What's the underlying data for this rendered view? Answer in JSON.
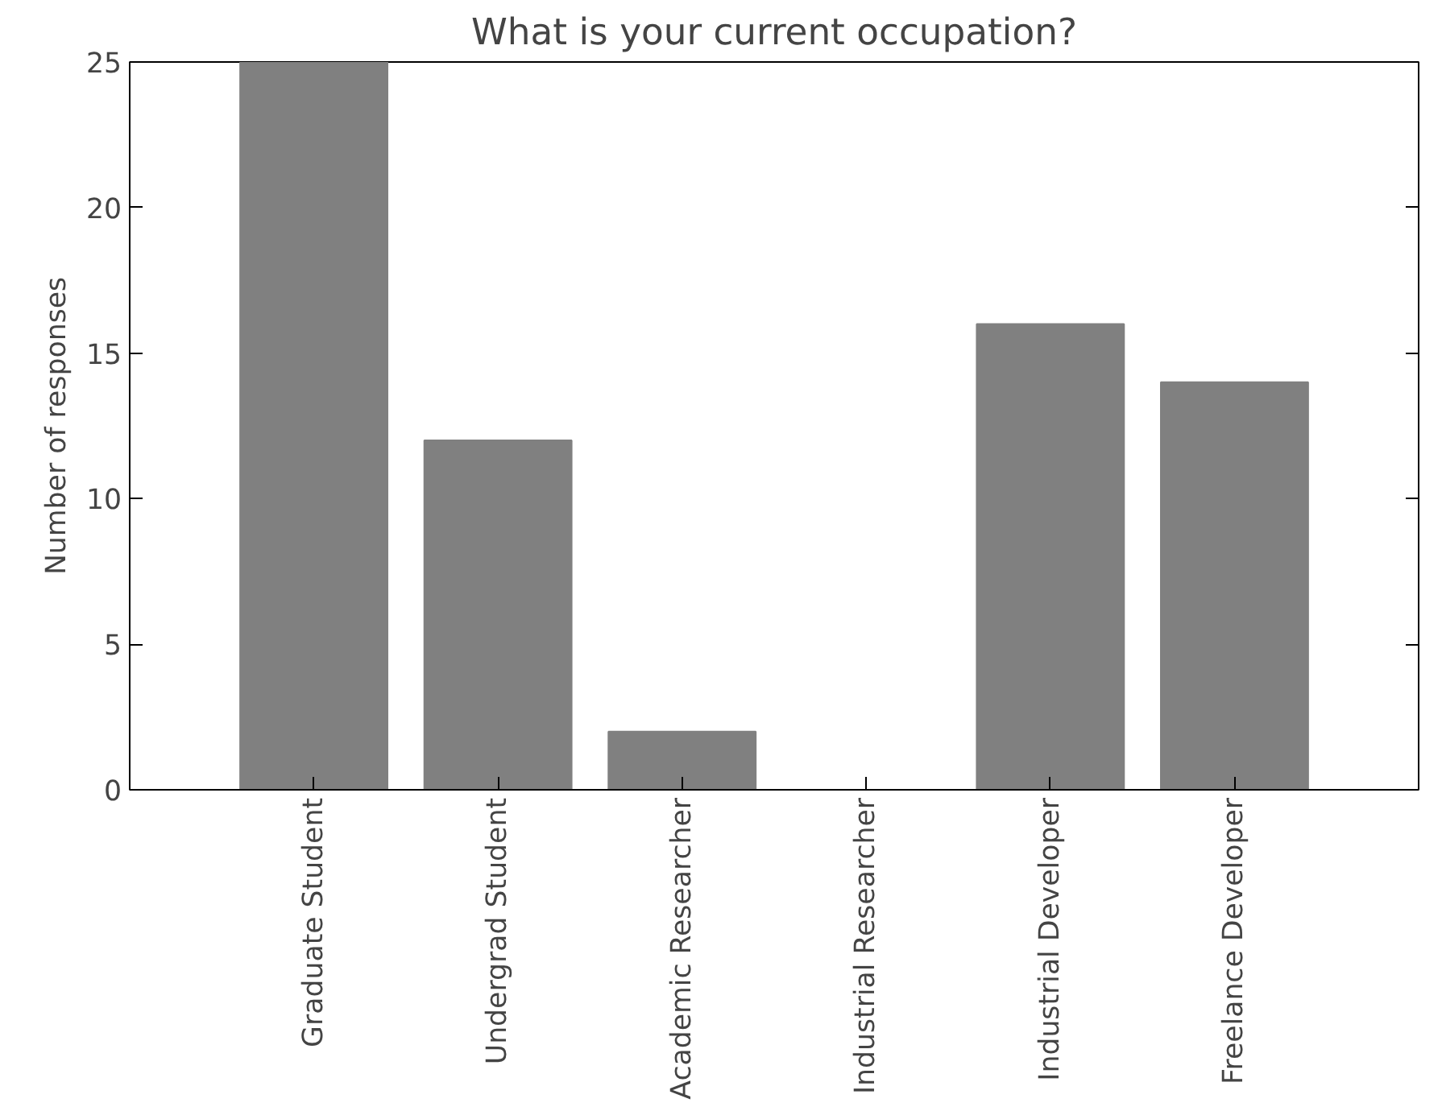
{
  "chart_data": {
    "type": "bar",
    "title": "What is your current occupation?",
    "ylabel": "Number of responses",
    "categories": [
      "Graduate Student",
      "Undergrad Student",
      "Academic Researcher",
      "Industrial Researcher",
      "Industrial Developer",
      "Freelance Developer"
    ],
    "values": [
      25,
      12,
      2,
      0,
      16,
      14
    ],
    "color": "#808080",
    "ylim": [
      0,
      25
    ],
    "yticks": [
      0,
      5,
      10,
      15,
      20,
      25
    ],
    "grid": false
  }
}
